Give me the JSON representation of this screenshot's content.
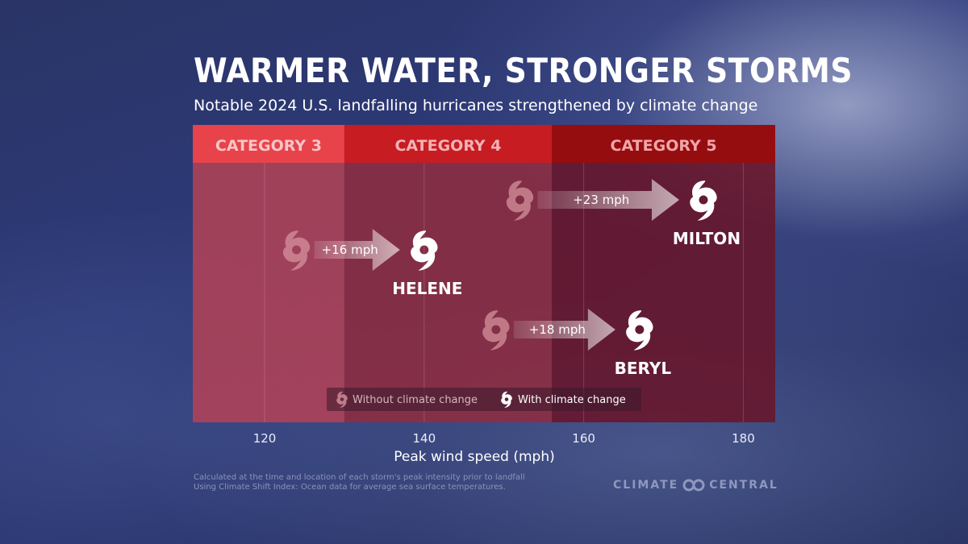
{
  "title": "Warmer water, stronger storms",
  "subtitle": "Notable 2024 U.S. landfalling hurricanes strengthened by climate change",
  "chart_data": {
    "type": "scatter",
    "xlabel": "Peak wind speed (mph)",
    "xlim": [
      111,
      184
    ],
    "x_ticks": [
      120,
      140,
      160,
      180
    ],
    "categories": [
      {
        "label": "CATEGORY 3",
        "from": 111,
        "to": 130
      },
      {
        "label": "CATEGORY 4",
        "from": 130,
        "to": 156
      },
      {
        "label": "CATEGORY 5",
        "from": 156,
        "to": 184
      }
    ],
    "storms": [
      {
        "name": "MILTON",
        "without": 152,
        "with": 175,
        "delta_label": "+23 mph",
        "row": 1
      },
      {
        "name": "HELENE",
        "without": 124,
        "with": 140,
        "delta_label": "+16 mph",
        "row": 2
      },
      {
        "name": "BERYL",
        "without": 149,
        "with": 167,
        "delta_label": "+18 mph",
        "row": 3
      }
    ],
    "legend": [
      {
        "key": "without",
        "label": "Without climate change"
      },
      {
        "key": "with",
        "label": "With climate change"
      }
    ],
    "grid": true,
    "colors": {
      "cat3_header": "#e8434a",
      "cat4_header": "#c71c22",
      "cat5_header": "#960d10",
      "cat3_band": "#b04256",
      "cat4_band": "#8e2c40",
      "cat5_band": "#69162a",
      "icon_with": "#ffffff",
      "icon_without": "#d4929c"
    }
  },
  "footnote": [
    "Calculated at the time and location of each storm's peak intensity prior to landfall",
    "Using Climate Shift Index: Ocean data for average sea surface temperatures."
  ],
  "brand": {
    "left": "CLIMATE",
    "right": "CENTRAL",
    "icon": "climate-central-logo-icon"
  }
}
